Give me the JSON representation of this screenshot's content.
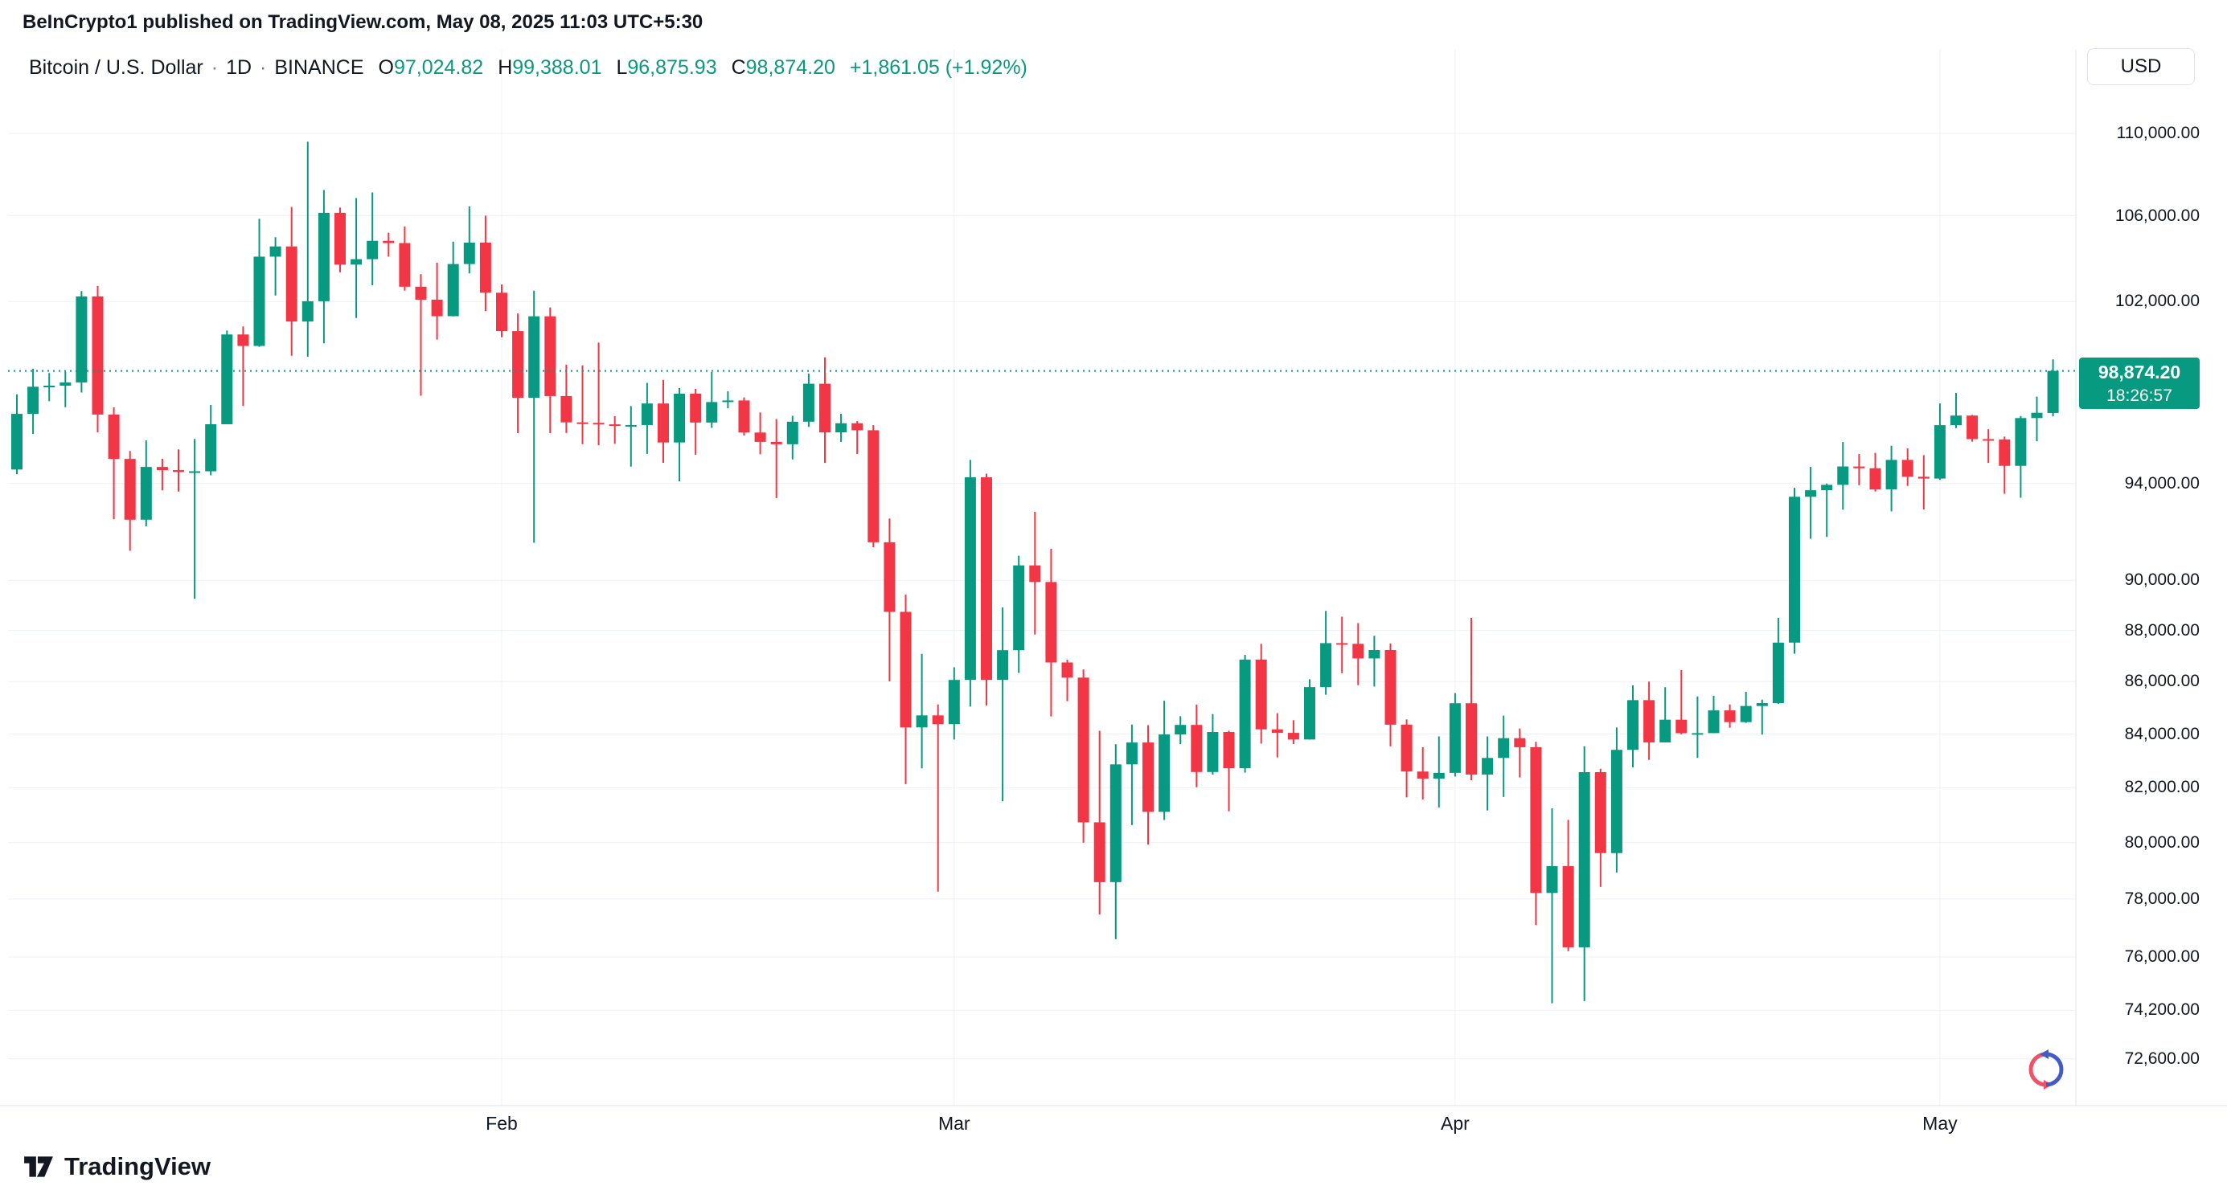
{
  "attribution": {
    "text": "BeInCrypto1 published on TradingView.com, May 08, 2025 11:03 UTC+5:30"
  },
  "header": {
    "symbol": "Bitcoin / U.S. Dollar",
    "separator": "·",
    "interval": "1D",
    "exchange": "BINANCE",
    "open_label": "O",
    "open": "97,024.82",
    "high_label": "H",
    "high": "99,388.01",
    "low_label": "L",
    "low": "96,875.93",
    "close_label": "C",
    "close": "98,874.20",
    "change": "+1,861.05 (+1.92%)",
    "currency_button": "USD"
  },
  "price_scale": {
    "ticks": [
      {
        "label": "110,000.00",
        "value": 110000
      },
      {
        "label": "106,000.00",
        "value": 106000
      },
      {
        "label": "102,000.00",
        "value": 102000
      },
      {
        "label": "94,000.00",
        "value": 94000
      },
      {
        "label": "90,000.00",
        "value": 90000
      },
      {
        "label": "88,000.00",
        "value": 88000
      },
      {
        "label": "86,000.00",
        "value": 86000
      },
      {
        "label": "84,000.00",
        "value": 84000
      },
      {
        "label": "82,000.00",
        "value": 82000
      },
      {
        "label": "80,000.00",
        "value": 80000
      },
      {
        "label": "78,000.00",
        "value": 78000
      },
      {
        "label": "76,000.00",
        "value": 76000
      },
      {
        "label": "74,200.00",
        "value": 74200
      },
      {
        "label": "72,600.00",
        "value": 72600
      }
    ],
    "last_price": {
      "label": "98,874.20",
      "countdown": "18:26:57",
      "value": 98874.2
    }
  },
  "time_scale": {
    "labels": [
      {
        "label": "Feb",
        "index": 30
      },
      {
        "label": "Mar",
        "index": 58
      },
      {
        "label": "Apr",
        "index": 89
      },
      {
        "label": "May",
        "index": 119
      }
    ]
  },
  "footer": {
    "brand": "TradingView"
  },
  "icons": {
    "tradingview_logo": "tradingview-17-mark",
    "beincrypto_watermark": "circular-arrows-red-blue"
  },
  "colors": {
    "up": "#089981",
    "down": "#f23645",
    "text": "#131722",
    "muted": "#787b86",
    "grid": "#eef1f7",
    "axis_border": "#e0e3eb",
    "badge_bg": "#089981"
  },
  "chart_data": {
    "type": "candlestick",
    "title": "Bitcoin / U.S. Dollar, 1D, BINANCE",
    "symbol": "BTCUSD",
    "interval": "1D",
    "scale": "logarithmic",
    "ylim_visible": [
      72600,
      111000
    ],
    "last_bar": {
      "open": 97024.82,
      "high": 99388.01,
      "low": 96875.93,
      "close": 98874.2,
      "change_abs": 1861.05,
      "change_pct": 1.92
    },
    "columns": [
      "date",
      "open",
      "high",
      "low",
      "close"
    ],
    "candles": [
      [
        "2025-01-02",
        94591,
        97839,
        94392,
        96984
      ],
      [
        "2025-01-03",
        96984,
        98972,
        96111,
        98174
      ],
      [
        "2025-01-04",
        98174,
        98778,
        97538,
        98220
      ],
      [
        "2025-01-05",
        98220,
        98836,
        97276,
        98363
      ],
      [
        "2025-01-06",
        98363,
        102480,
        97920,
        102235
      ],
      [
        "2025-01-07",
        102235,
        102724,
        96181,
        96954
      ],
      [
        "2025-01-08",
        96954,
        97268,
        92500,
        95043
      ],
      [
        "2025-01-09",
        95043,
        95382,
        91200,
        92484
      ],
      [
        "2025-01-10",
        92484,
        95836,
        92206,
        94701
      ],
      [
        "2025-01-11",
        94701,
        95050,
        93712,
        94566
      ],
      [
        "2025-01-12",
        94566,
        95450,
        93661,
        94488
      ],
      [
        "2025-01-13",
        94488,
        95900,
        89256,
        94516
      ],
      [
        "2025-01-14",
        94516,
        97371,
        94346,
        96534
      ],
      [
        "2025-01-15",
        96534,
        100681,
        96534,
        100504
      ],
      [
        "2025-01-16",
        100504,
        100866,
        97335,
        99987
      ],
      [
        "2025-01-17",
        99987,
        105865,
        99950,
        104077
      ],
      [
        "2025-01-18",
        104077,
        104987,
        102277,
        104556
      ],
      [
        "2025-01-19",
        104556,
        106422,
        99550,
        101089
      ],
      [
        "2025-01-20",
        101089,
        109588,
        99510,
        102016
      ],
      [
        "2025-01-21",
        102016,
        107240,
        100106,
        106146
      ],
      [
        "2025-01-22",
        106146,
        106394,
        103352,
        103706
      ],
      [
        "2025-01-23",
        103706,
        106850,
        101252,
        103960
      ],
      [
        "2025-01-24",
        103960,
        107120,
        102750,
        104819
      ],
      [
        "2025-01-25",
        104819,
        105200,
        104076,
        104714
      ],
      [
        "2025-01-26",
        104714,
        105500,
        102500,
        102682
      ],
      [
        "2025-01-27",
        102682,
        103260,
        97777,
        102086
      ],
      [
        "2025-01-28",
        102086,
        103800,
        100272,
        101332
      ],
      [
        "2025-01-29",
        101332,
        104782,
        101325,
        103733
      ],
      [
        "2025-01-30",
        103733,
        106457,
        103298,
        104735
      ],
      [
        "2025-01-31",
        104735,
        106012,
        101560,
        102405
      ],
      [
        "2025-02-01",
        102405,
        102785,
        100379,
        100655
      ],
      [
        "2025-02-02",
        100655,
        101456,
        96150,
        97688
      ],
      [
        "2025-02-03",
        97688,
        102500,
        91530,
        101328
      ],
      [
        "2025-02-04",
        101328,
        101732,
        96150,
        97763
      ],
      [
        "2025-02-05",
        97763,
        99149,
        96155,
        96615
      ],
      [
        "2025-02-06",
        96615,
        99120,
        95676,
        96593
      ],
      [
        "2025-02-07",
        96593,
        100138,
        95628,
        96529
      ],
      [
        "2025-02-08",
        96529,
        96880,
        95688,
        96482
      ],
      [
        "2025-02-09",
        96482,
        97323,
        94713,
        96500
      ],
      [
        "2025-02-10",
        96500,
        98345,
        95256,
        97437
      ],
      [
        "2025-02-11",
        97437,
        98478,
        94876,
        95747
      ],
      [
        "2025-02-12",
        95747,
        98119,
        94088,
        97869
      ],
      [
        "2025-02-13",
        97869,
        98083,
        95217,
        96608
      ],
      [
        "2025-02-14",
        96608,
        98826,
        96378,
        97500
      ],
      [
        "2025-02-15",
        97500,
        97972,
        97224,
        97570
      ],
      [
        "2025-02-16",
        97570,
        97704,
        96046,
        96175
      ],
      [
        "2025-02-17",
        96175,
        97046,
        95240,
        95773
      ],
      [
        "2025-02-18",
        95773,
        96754,
        93388,
        95671
      ],
      [
        "2025-02-19",
        95671,
        96899,
        95022,
        96644
      ],
      [
        "2025-02-20",
        96644,
        98756,
        96414,
        98305
      ],
      [
        "2025-02-21",
        98305,
        99475,
        94871,
        96181
      ],
      [
        "2025-02-22",
        96181,
        96986,
        95771,
        96577
      ],
      [
        "2025-02-23",
        96577,
        96670,
        95255,
        96274
      ],
      [
        "2025-02-24",
        96274,
        96500,
        91349,
        91552
      ],
      [
        "2025-02-25",
        91552,
        92532,
        86008,
        88736
      ],
      [
        "2025-02-26",
        88736,
        89423,
        82131,
        84250
      ],
      [
        "2025-02-27",
        84250,
        87078,
        82716,
        84705
      ],
      [
        "2025-02-28",
        84705,
        85120,
        78258,
        84373
      ],
      [
        "2025-03-01",
        84373,
        86558,
        83794,
        86064
      ],
      [
        "2025-03-02",
        86064,
        95000,
        85040,
        94261
      ],
      [
        "2025-03-03",
        94261,
        94416,
        85081,
        86065
      ],
      [
        "2025-03-04",
        86065,
        88911,
        81500,
        87222
      ],
      [
        "2025-03-05",
        87222,
        91000,
        86334,
        90606
      ],
      [
        "2025-03-06",
        90606,
        92810,
        87836,
        89932
      ],
      [
        "2025-03-07",
        89932,
        91283,
        84667,
        86742
      ],
      [
        "2025-03-08",
        86742,
        86847,
        85247,
        86154
      ],
      [
        "2025-03-09",
        86154,
        86471,
        80000,
        80734
      ],
      [
        "2025-03-10",
        80734,
        84123,
        77459,
        78595
      ],
      [
        "2025-03-11",
        78595,
        83616,
        76606,
        82862
      ],
      [
        "2025-03-12",
        82862,
        84358,
        80635,
        83680
      ],
      [
        "2025-03-13",
        83680,
        84336,
        79931,
        81115
      ],
      [
        "2025-03-14",
        81115,
        85263,
        80818,
        83983
      ],
      [
        "2025-03-15",
        83983,
        84676,
        83617,
        84343
      ],
      [
        "2025-03-16",
        84343,
        85117,
        82015,
        82579
      ],
      [
        "2025-03-17",
        82579,
        84756,
        82479,
        84075
      ],
      [
        "2025-03-18",
        84075,
        84120,
        81134,
        82718
      ],
      [
        "2025-03-19",
        82718,
        87040,
        82553,
        86854
      ],
      [
        "2025-03-20",
        86854,
        87470,
        83639,
        84175
      ],
      [
        "2025-03-21",
        84175,
        84790,
        83125,
        84043
      ],
      [
        "2025-03-22",
        84043,
        84522,
        83622,
        83793
      ],
      [
        "2025-03-23",
        83793,
        86092,
        83793,
        85787
      ],
      [
        "2025-03-24",
        85787,
        88772,
        85495,
        87498
      ],
      [
        "2025-03-25",
        87498,
        88543,
        86322,
        87471
      ],
      [
        "2025-03-26",
        87471,
        88287,
        85861,
        86900
      ],
      [
        "2025-03-27",
        86900,
        87786,
        85811,
        87227
      ],
      [
        "2025-03-28",
        87227,
        87489,
        83534,
        84353
      ],
      [
        "2025-03-29",
        84353,
        84550,
        81644,
        82597
      ],
      [
        "2025-03-30",
        82597,
        83500,
        81565,
        82334
      ],
      [
        "2025-03-31",
        82334,
        83909,
        81278,
        82548
      ],
      [
        "2025-04-01",
        82548,
        85559,
        82410,
        85169
      ],
      [
        "2025-04-02",
        85169,
        88500,
        82277,
        82485
      ],
      [
        "2025-04-03",
        82485,
        83909,
        81167,
        83102
      ],
      [
        "2025-04-04",
        83102,
        84696,
        81659,
        83843
      ],
      [
        "2025-04-05",
        83843,
        84207,
        82377,
        83504
      ],
      [
        "2025-04-06",
        83504,
        83704,
        77097,
        78214
      ],
      [
        "2025-04-07",
        78214,
        81243,
        74436,
        79163
      ],
      [
        "2025-04-08",
        79163,
        80823,
        76198,
        76329
      ],
      [
        "2025-04-09",
        76329,
        83541,
        74508,
        82573
      ],
      [
        "2025-04-10",
        82573,
        82700,
        78426,
        79626
      ],
      [
        "2025-04-11",
        79626,
        84247,
        78936,
        83404
      ],
      [
        "2025-04-12",
        83404,
        85856,
        82750,
        85287
      ],
      [
        "2025-04-13",
        85287,
        86000,
        83027,
        83684
      ],
      [
        "2025-04-14",
        83684,
        85784,
        83684,
        84542
      ],
      [
        "2025-04-15",
        84542,
        86450,
        83986,
        84030
      ],
      [
        "2025-04-16",
        84030,
        85428,
        83105,
        84033
      ],
      [
        "2025-04-17",
        84033,
        85450,
        84030,
        84895
      ],
      [
        "2025-04-18",
        84895,
        85120,
        84237,
        84450
      ],
      [
        "2025-04-19",
        84450,
        85605,
        84419,
        85063
      ],
      [
        "2025-04-20",
        85063,
        85306,
        83976,
        85174
      ],
      [
        "2025-04-21",
        85174,
        88500,
        85143,
        87518
      ],
      [
        "2025-04-22",
        87518,
        93817,
        87080,
        93441
      ],
      [
        "2025-04-23",
        93441,
        94700,
        91697,
        93715
      ],
      [
        "2025-04-24",
        93715,
        94000,
        91770,
        93943
      ],
      [
        "2025-04-25",
        93943,
        95768,
        92898,
        94720
      ],
      [
        "2025-04-26",
        94720,
        95251,
        93927,
        94646
      ],
      [
        "2025-04-27",
        94646,
        95301,
        93665,
        93754
      ],
      [
        "2025-04-28",
        93754,
        95605,
        92830,
        95000
      ],
      [
        "2025-04-29",
        95000,
        95490,
        93900,
        94284
      ],
      [
        "2025-04-30",
        94284,
        95200,
        92910,
        94207
      ],
      [
        "2025-05-01",
        94207,
        97437,
        94153,
        96494
      ],
      [
        "2025-05-02",
        96494,
        97905,
        96366,
        96910
      ],
      [
        "2025-05-03",
        96910,
        96938,
        95783,
        95891
      ],
      [
        "2025-05-04",
        95891,
        96319,
        94872,
        95877
      ],
      [
        "2025-05-05",
        95877,
        95999,
        93566,
        94748
      ],
      [
        "2025-05-06",
        94748,
        96889,
        93399,
        96802
      ],
      [
        "2025-05-07",
        96802,
        97737,
        95798,
        97032
      ],
      [
        "2025-05-08",
        97024,
        99388,
        96875,
        98874
      ]
    ]
  }
}
